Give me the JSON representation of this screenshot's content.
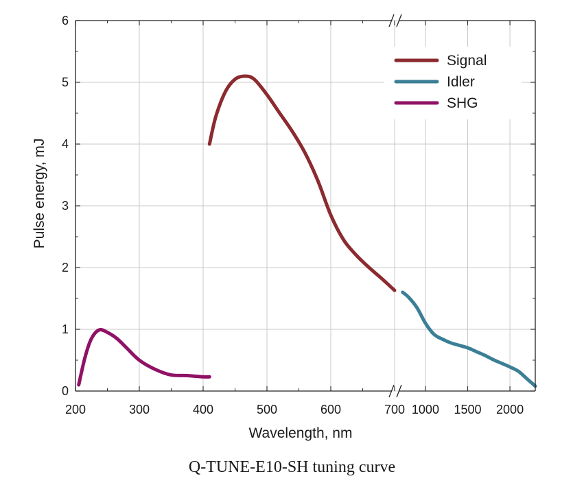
{
  "caption": "Q-TUNE-E10-SH tuning curve",
  "chart_data": {
    "type": "line",
    "xlabel": "Wavelength, nm",
    "ylabel": "Pulse energy, mJ",
    "ylim": [
      0,
      6
    ],
    "y_ticks": [
      "0",
      "1",
      "2",
      "3",
      "4",
      "5",
      "6"
    ],
    "grid": true,
    "axis_break": true,
    "segments": [
      {
        "xlim": [
          200,
          700
        ],
        "x_ticks": [
          "200",
          "300",
          "400",
          "500",
          "600",
          "700"
        ]
      },
      {
        "xlim": [
          700,
          2300
        ],
        "x_ticks": [
          "1000",
          "1500",
          "2000"
        ]
      }
    ],
    "legend_position": "top-right",
    "series": [
      {
        "name": "Signal",
        "color": "#8b2b30",
        "segment": 0,
        "points": [
          [
            410,
            4.0
          ],
          [
            420,
            4.45
          ],
          [
            435,
            4.85
          ],
          [
            450,
            5.05
          ],
          [
            465,
            5.1
          ],
          [
            480,
            5.05
          ],
          [
            500,
            4.8
          ],
          [
            520,
            4.5
          ],
          [
            540,
            4.2
          ],
          [
            560,
            3.85
          ],
          [
            580,
            3.4
          ],
          [
            600,
            2.85
          ],
          [
            620,
            2.45
          ],
          [
            640,
            2.2
          ],
          [
            660,
            2.0
          ],
          [
            680,
            1.82
          ],
          [
            700,
            1.63
          ]
        ]
      },
      {
        "name": "Idler",
        "color": "#3b7f96",
        "segment": 1,
        "points": [
          [
            730,
            1.6
          ],
          [
            800,
            1.52
          ],
          [
            900,
            1.35
          ],
          [
            1000,
            1.1
          ],
          [
            1100,
            0.92
          ],
          [
            1200,
            0.84
          ],
          [
            1300,
            0.78
          ],
          [
            1400,
            0.74
          ],
          [
            1500,
            0.7
          ],
          [
            1600,
            0.64
          ],
          [
            1700,
            0.58
          ],
          [
            1800,
            0.51
          ],
          [
            1900,
            0.45
          ],
          [
            2000,
            0.39
          ],
          [
            2100,
            0.32
          ],
          [
            2200,
            0.2
          ],
          [
            2300,
            0.08
          ]
        ]
      },
      {
        "name": "SHG",
        "color": "#8f1266",
        "segment": 0,
        "points": [
          [
            205,
            0.1
          ],
          [
            215,
            0.55
          ],
          [
            225,
            0.85
          ],
          [
            237,
            0.99
          ],
          [
            250,
            0.95
          ],
          [
            265,
            0.85
          ],
          [
            280,
            0.7
          ],
          [
            300,
            0.5
          ],
          [
            325,
            0.35
          ],
          [
            350,
            0.26
          ],
          [
            375,
            0.25
          ],
          [
            400,
            0.23
          ],
          [
            410,
            0.23
          ]
        ]
      }
    ]
  }
}
